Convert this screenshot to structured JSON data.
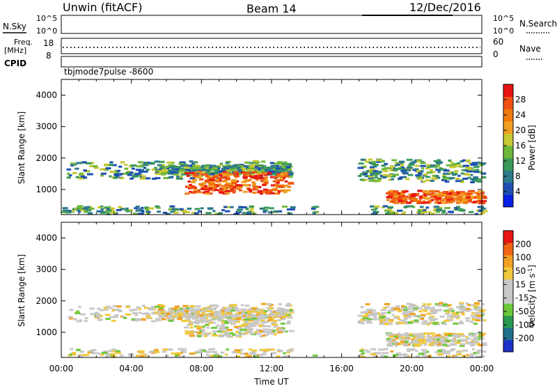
{
  "header": {
    "title": "Unwin (fitACF)",
    "beam": "Beam 14",
    "date": "12/Dec/2016"
  },
  "panels": {
    "nsky": {
      "label": "N.Sky",
      "yticks": [
        "10^5",
        "10^0"
      ],
      "right_ticks": [
        "10^5",
        "10^0"
      ],
      "right_label": "N.Search"
    },
    "freq": {
      "label_top": "Freq.",
      "label_unit": "[MHz]",
      "left_ticks": [
        "18",
        "8"
      ],
      "right_ticks": [
        "60",
        "0"
      ],
      "right_label": "Nave"
    },
    "cpid": {
      "label": "CPID",
      "value": "tbjmode7pulse  -8600"
    }
  },
  "colorbars": {
    "power": {
      "label": "Power [dB]",
      "ticks": [
        "28",
        "24",
        "20",
        "16",
        "12",
        "8",
        "4"
      ],
      "colors": [
        "#0a1ee6",
        "#1e50b4",
        "#2d7a8a",
        "#3a9a5a",
        "#70b83a",
        "#c8c832",
        "#f0a020",
        "#f07a10",
        "#f05014",
        "#e61414"
      ]
    },
    "velocity": {
      "label_main": "Velocity [m s",
      "label_sup": "-1",
      "label_end": "]",
      "ticks": [
        "200",
        "100",
        "50",
        "15",
        "-15",
        "-50",
        "-100",
        "-200"
      ],
      "colors": [
        "#1e32c8",
        "#1e6e8c",
        "#2a9a50",
        "#6ec83c",
        "#c8c8c8",
        "#c8c8c8",
        "#f0c83c",
        "#f0a020",
        "#f06414",
        "#e61414"
      ]
    }
  },
  "chart_data": [
    {
      "type": "heatmap",
      "name": "power",
      "ylabel": "Slant Range [km]",
      "yticks": [
        1000,
        2000,
        3000,
        4000
      ],
      "ylim": [
        200,
        4500
      ],
      "xlim_hours": [
        0,
        24
      ],
      "xticks": [
        "00:00",
        "04:00",
        "08:00",
        "12:00",
        "16:00",
        "20:00",
        "00:00"
      ],
      "data_gap_hours": [
        [
          13.1,
          14.2
        ],
        [
          14.5,
          16.9
        ]
      ]
    },
    {
      "type": "heatmap",
      "name": "velocity",
      "ylabel": "Slant Range [km]",
      "yticks": [
        1000,
        2000,
        3000,
        4000
      ],
      "ylim": [
        200,
        4500
      ],
      "xlim_hours": [
        0,
        24
      ],
      "xticks": [
        "00:00",
        "04:00",
        "08:00",
        "12:00",
        "16:00",
        "20:00",
        "00:00"
      ],
      "xlabel": "Time UT",
      "data_gap_hours": [
        [
          13.1,
          14.2
        ],
        [
          14.5,
          16.9
        ]
      ]
    }
  ]
}
